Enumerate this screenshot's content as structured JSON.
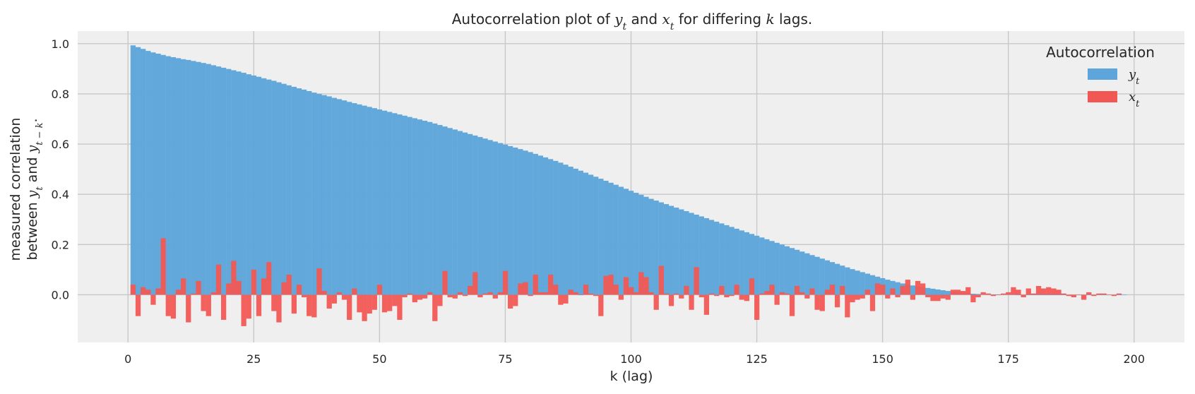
{
  "chart_data": {
    "type": "bar",
    "title": {
      "prefix": "Autocorrelation plot of ",
      "var1": "y",
      "sub1": "t",
      "mid": " and ",
      "var2": "x",
      "sub2": "t",
      "mid2": " for differing ",
      "var3": "k",
      "suffix": " lags."
    },
    "xlabel": "k (lag)",
    "ylabel": {
      "line1": "measured correlation",
      "line2_prefix": "between ",
      "var1": "y",
      "sub1": "t",
      "mid": " and ",
      "var2": "y",
      "sub2": "t − k",
      "suffix": "."
    },
    "xlim": [
      -10,
      210
    ],
    "ylim": [
      -0.19,
      1.05
    ],
    "xticks": [
      0,
      25,
      50,
      75,
      100,
      125,
      150,
      175,
      200
    ],
    "xtick_labels": [
      "0",
      "25",
      "50",
      "75",
      "100",
      "125",
      "150",
      "175",
      "200"
    ],
    "yticks": [
      0.0,
      0.2,
      0.4,
      0.6,
      0.8,
      1.0
    ],
    "ytick_labels": [
      "0.0",
      "0.2",
      "0.4",
      "0.6",
      "0.8",
      "1.0"
    ],
    "grid": true,
    "legend": {
      "title": "Autocorrelation",
      "placement": "top-right"
    },
    "series": [
      {
        "name": "y",
        "name_sub": "t",
        "color": "#5da5da",
        "x_start": 1,
        "values": [
          0.993,
          0.986,
          0.979,
          0.971,
          0.965,
          0.96,
          0.955,
          0.95,
          0.946,
          0.942,
          0.938,
          0.935,
          0.931,
          0.927,
          0.923,
          0.919,
          0.914,
          0.909,
          0.904,
          0.899,
          0.894,
          0.889,
          0.884,
          0.878,
          0.873,
          0.868,
          0.862,
          0.857,
          0.852,
          0.846,
          0.84,
          0.834,
          0.828,
          0.822,
          0.817,
          0.811,
          0.805,
          0.8,
          0.795,
          0.79,
          0.784,
          0.779,
          0.774,
          0.768,
          0.763,
          0.758,
          0.753,
          0.748,
          0.743,
          0.738,
          0.733,
          0.728,
          0.723,
          0.718,
          0.713,
          0.708,
          0.703,
          0.698,
          0.693,
          0.688,
          0.682,
          0.676,
          0.67,
          0.664,
          0.658,
          0.652,
          0.646,
          0.64,
          0.634,
          0.628,
          0.622,
          0.616,
          0.61,
          0.604,
          0.598,
          0.592,
          0.586,
          0.58,
          0.574,
          0.568,
          0.561,
          0.554,
          0.547,
          0.54,
          0.533,
          0.526,
          0.518,
          0.51,
          0.502,
          0.494,
          0.486,
          0.478,
          0.47,
          0.462,
          0.454,
          0.446,
          0.438,
          0.43,
          0.422,
          0.414,
          0.406,
          0.398,
          0.39,
          0.382,
          0.375,
          0.368,
          0.361,
          0.354,
          0.347,
          0.34,
          0.333,
          0.326,
          0.319,
          0.312,
          0.305,
          0.298,
          0.291,
          0.284,
          0.277,
          0.27,
          0.263,
          0.256,
          0.249,
          0.242,
          0.235,
          0.228,
          0.221,
          0.214,
          0.207,
          0.2,
          0.193,
          0.186,
          0.179,
          0.172,
          0.165,
          0.158,
          0.151,
          0.144,
          0.137,
          0.13,
          0.123,
          0.116,
          0.109,
          0.102,
          0.096,
          0.09,
          0.084,
          0.078,
          0.072,
          0.066,
          0.06,
          0.055,
          0.05,
          0.045,
          0.041,
          0.037,
          0.033,
          0.03,
          0.027,
          0.024,
          0.021,
          0.018,
          0.015,
          0.012,
          0.01,
          0.008,
          0.006,
          0.004,
          0.003,
          0.002,
          0.001,
          0.001,
          0.001,
          0.001,
          0.001,
          0.001,
          0.0,
          0.0,
          0.0,
          0.0,
          0.0,
          0.0,
          0.0,
          0.0,
          0.0,
          0.0,
          0.0,
          0.0,
          0.0,
          0.0,
          0.0,
          0.0,
          0.0,
          0.0,
          0.0,
          0.0,
          0.0,
          0.0
        ]
      },
      {
        "name": "x",
        "name_sub": "t",
        "color": "#f15854",
        "x_start": 1,
        "values": [
          0.04,
          -0.085,
          0.03,
          0.02,
          -0.04,
          0.025,
          0.225,
          -0.085,
          -0.095,
          0.02,
          0.065,
          -0.11,
          0.005,
          0.055,
          -0.065,
          -0.085,
          0.01,
          0.12,
          -0.1,
          0.045,
          0.135,
          0.055,
          -0.125,
          -0.095,
          0.1,
          -0.085,
          0.065,
          0.13,
          -0.065,
          -0.11,
          0.05,
          0.08,
          -0.075,
          0.04,
          -0.01,
          -0.085,
          -0.09,
          0.105,
          0.015,
          -0.055,
          -0.035,
          0.01,
          -0.02,
          -0.1,
          0.025,
          -0.07,
          -0.105,
          -0.075,
          -0.06,
          0.04,
          -0.07,
          -0.065,
          -0.045,
          -0.1,
          -0.01,
          0.005,
          -0.03,
          -0.02,
          -0.015,
          0.01,
          -0.105,
          -0.045,
          0.095,
          -0.01,
          -0.015,
          0.01,
          -0.005,
          0.035,
          0.09,
          -0.01,
          0.005,
          0.01,
          -0.015,
          0.01,
          0.095,
          -0.055,
          -0.045,
          0.045,
          0.05,
          -0.005,
          0.08,
          0.01,
          0.01,
          0.08,
          0.04,
          -0.04,
          -0.035,
          0.02,
          0.01,
          0.0,
          0.04,
          0.005,
          -0.005,
          -0.085,
          0.075,
          0.08,
          0.04,
          -0.02,
          0.07,
          0.03,
          0.01,
          0.09,
          0.07,
          0.01,
          -0.06,
          0.115,
          0.005,
          -0.045,
          0.005,
          -0.015,
          0.035,
          -0.06,
          0.11,
          -0.01,
          -0.08,
          0.005,
          -0.005,
          0.035,
          -0.01,
          -0.005,
          0.04,
          -0.02,
          -0.025,
          0.065,
          -0.1,
          0.005,
          0.015,
          0.04,
          -0.04,
          0.01,
          0.005,
          -0.085,
          0.035,
          0.01,
          -0.015,
          0.025,
          -0.06,
          -0.065,
          0.02,
          0.04,
          -0.05,
          0.035,
          -0.09,
          -0.03,
          -0.02,
          -0.015,
          0.02,
          -0.065,
          0.045,
          0.04,
          -0.015,
          0.025,
          -0.01,
          0.035,
          0.06,
          -0.02,
          0.055,
          0.045,
          -0.01,
          -0.025,
          -0.025,
          -0.015,
          -0.02,
          0.02,
          0.02,
          0.015,
          0.03,
          -0.03,
          -0.01,
          0.01,
          0.005,
          -0.005,
          0.0,
          0.005,
          0.01,
          0.03,
          0.02,
          -0.01,
          0.025,
          0.005,
          0.035,
          0.025,
          0.03,
          0.025,
          0.02,
          0.005,
          -0.005,
          -0.01,
          0.0,
          -0.02,
          0.01,
          -0.005,
          0.005,
          0.005,
          0.0,
          -0.005,
          0.005
        ]
      }
    ]
  }
}
